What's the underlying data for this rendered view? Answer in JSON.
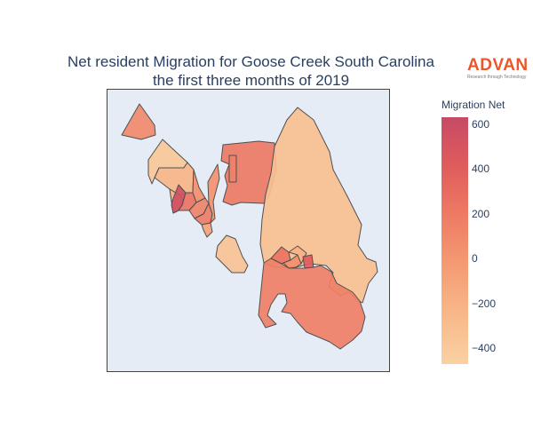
{
  "title": {
    "line1": "Net resident Migration for Goose Creek South Carolina",
    "line2": "the first three months of 2019"
  },
  "logo": {
    "wordmark": "ADVAN",
    "tagline": "Research through Technology",
    "color": "#e9572b"
  },
  "colorbar": {
    "title": "Migration Net",
    "min": -470,
    "max": 630,
    "ticks": [
      {
        "value": 600,
        "label": "600"
      },
      {
        "value": 400,
        "label": "400"
      },
      {
        "value": 200,
        "label": "200"
      },
      {
        "value": 0,
        "label": "0"
      },
      {
        "value": -200,
        "label": "−200"
      },
      {
        "value": -400,
        "label": "−400"
      }
    ],
    "colorscale": [
      "#fad1a3",
      "#f8b889",
      "#f49b74",
      "#ee7b64",
      "#e05c5c",
      "#c74a66"
    ]
  },
  "map": {
    "background": "#e5ecf6",
    "border_color": "#505050",
    "regions": [
      {
        "id": "nw-parcel",
        "value": 90
      },
      {
        "id": "upper-left-strip",
        "value": -380
      },
      {
        "id": "upper-left-mid",
        "value": -230
      },
      {
        "id": "left-core-light",
        "value": -180
      },
      {
        "id": "left-core-hot",
        "value": 560
      },
      {
        "id": "left-core-b",
        "value": 250
      },
      {
        "id": "left-core-c",
        "value": 140
      },
      {
        "id": "left-core-d",
        "value": 60
      },
      {
        "id": "left-core-e",
        "value": 180
      },
      {
        "id": "left-core-f",
        "value": -80
      },
      {
        "id": "left-tail",
        "value": 40
      },
      {
        "id": "north-block",
        "value": 200
      },
      {
        "id": "north-block-notch",
        "value": 150
      },
      {
        "id": "east-large",
        "value": -320
      },
      {
        "id": "east-cluster-a",
        "value": 250
      },
      {
        "id": "east-cluster-b",
        "value": 60
      },
      {
        "id": "east-cluster-c",
        "value": -200
      },
      {
        "id": "east-cluster-d",
        "value": 420
      },
      {
        "id": "south-large",
        "value": 160
      },
      {
        "id": "isolated-south",
        "value": -340
      }
    ]
  }
}
